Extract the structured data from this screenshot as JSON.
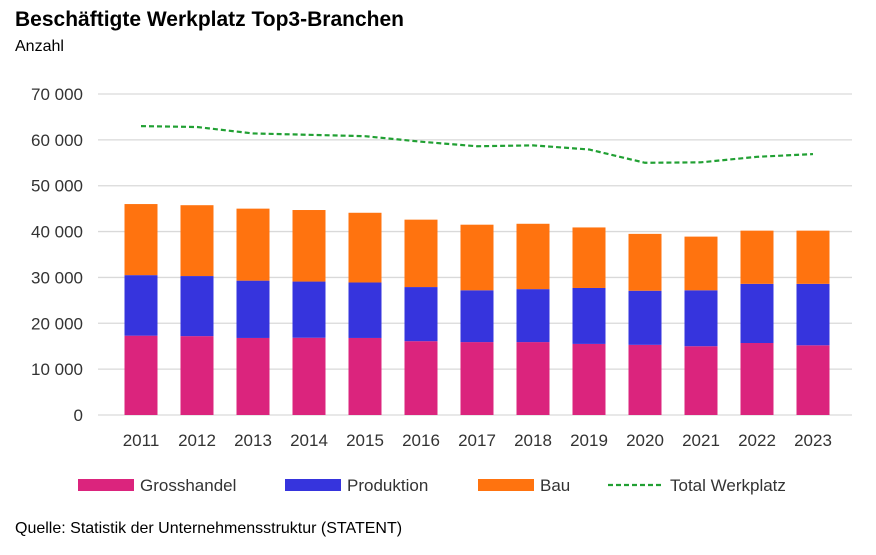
{
  "chart_data": {
    "type": "bar",
    "stacked": true,
    "title": "Beschäftigte Werkplatz Top3-Branchen",
    "subtitle": "Anzahl",
    "source": "Quelle: Statistik der Unternehmensstruktur (STATENT)",
    "categories": [
      "2011",
      "2012",
      "2013",
      "2014",
      "2015",
      "2016",
      "2017",
      "2018",
      "2019",
      "2020",
      "2021",
      "2022",
      "2023"
    ],
    "ylim": [
      0,
      70000
    ],
    "yticks": [
      0,
      10000,
      20000,
      30000,
      40000,
      50000,
      60000,
      70000
    ],
    "ytick_labels": [
      "0",
      "10 000",
      "20 000",
      "30 000",
      "40 000",
      "50 000",
      "60 000",
      "70 000"
    ],
    "grid": true,
    "legend_position": "bottom",
    "series": [
      {
        "name": "Grosshandel",
        "kind": "bar",
        "color": "#DB247D",
        "values": [
          17300,
          17200,
          16800,
          16850,
          16800,
          16100,
          15900,
          15900,
          15500,
          15300,
          15000,
          15700,
          15200
        ]
      },
      {
        "name": "Produktion",
        "kind": "bar",
        "color": "#3634DD",
        "values": [
          13200,
          13100,
          12500,
          12250,
          12100,
          11800,
          11300,
          11550,
          12200,
          11800,
          12200,
          12900,
          13400
        ]
      },
      {
        "name": "Bau",
        "kind": "bar",
        "color": "#FF730F",
        "values": [
          15500,
          15450,
          15700,
          15600,
          15200,
          14700,
          14300,
          14250,
          13200,
          12400,
          11700,
          11600,
          11600
        ]
      },
      {
        "name": "Total Werkplatz",
        "kind": "line",
        "style": "dashed",
        "color": "#21A033",
        "values": [
          63000,
          62800,
          61400,
          61100,
          60800,
          59600,
          58600,
          58800,
          57900,
          55000,
          55100,
          56300,
          56900
        ]
      }
    ]
  }
}
